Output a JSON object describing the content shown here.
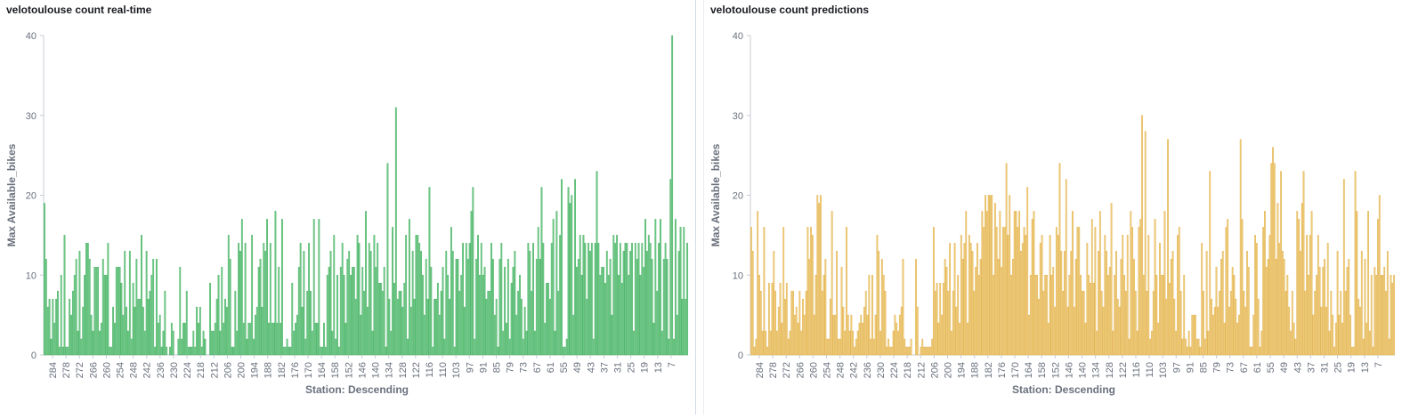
{
  "panels": [
    {
      "title": "velotoulouse count real-time",
      "bar_color": "#54b36e",
      "bar_fill": "#6dcc86",
      "chart_data": {
        "type": "bar",
        "title": "velotoulouse count real-time",
        "xlabel": "Station: Descending",
        "ylabel": "Max Available_bikes",
        "ylim": [
          0,
          40
        ],
        "yticks": [
          0,
          10,
          20,
          30,
          40
        ],
        "x_ticks": [
          "284",
          "278",
          "272",
          "266",
          "260",
          "254",
          "248",
          "242",
          "236",
          "230",
          "224",
          "218",
          "212",
          "206",
          "200",
          "194",
          "188",
          "182",
          "176",
          "170",
          "164",
          "158",
          "152",
          "146",
          "140",
          "134",
          "128",
          "122",
          "116",
          "110",
          "103",
          "97",
          "91",
          "85",
          "79",
          "73",
          "67",
          "61",
          "55",
          "49",
          "43",
          "37",
          "31",
          "25",
          "19",
          "13",
          "7"
        ],
        "values": [
          19,
          12,
          6,
          7,
          2,
          7,
          4,
          7,
          8,
          1,
          10,
          1,
          15,
          1,
          1,
          7,
          5,
          8,
          10,
          12,
          3,
          13,
          2,
          6,
          10,
          14,
          14,
          12,
          5,
          3,
          11,
          11,
          11,
          3,
          4,
          12,
          10,
          10,
          14,
          1,
          1,
          6,
          4,
          11,
          11,
          11,
          9,
          5,
          13,
          6,
          3,
          13,
          2,
          9,
          6,
          12,
          7,
          7,
          15,
          6,
          3,
          13,
          7,
          8,
          10,
          12,
          1,
          12,
          4,
          5,
          1,
          3,
          8,
          1,
          0,
          1,
          4,
          3,
          0,
          0,
          2,
          11,
          2,
          4,
          4,
          8,
          1,
          1,
          1,
          3,
          1,
          6,
          4,
          6,
          1,
          3,
          2,
          0,
          0,
          9,
          3,
          3,
          4,
          7,
          10,
          3,
          11,
          4,
          7,
          6,
          15,
          12,
          1,
          1,
          8,
          3,
          14,
          13,
          17,
          4,
          14,
          2,
          4,
          4,
          15,
          2,
          5,
          6,
          11,
          12,
          6,
          14,
          13,
          17,
          4,
          14,
          4,
          4,
          18,
          4,
          11,
          4,
          17,
          1,
          1,
          2,
          1,
          1,
          9,
          3,
          4,
          5,
          11,
          14,
          6,
          13,
          2,
          8,
          14,
          8,
          3,
          17,
          4,
          4,
          17,
          1,
          1,
          4,
          1,
          10,
          11,
          13,
          3,
          15,
          2,
          10,
          1,
          11,
          14,
          10,
          4,
          12,
          13,
          10,
          11,
          11,
          7,
          15,
          14,
          5,
          11,
          8,
          18,
          6,
          14,
          13,
          3,
          15,
          11,
          14,
          9,
          9,
          8,
          11,
          1,
          24,
          7,
          3,
          16,
          9,
          31,
          7,
          8,
          8,
          6,
          9,
          15,
          2,
          17,
          6,
          13,
          7,
          15,
          15,
          14,
          13,
          10,
          5,
          12,
          7,
          21,
          11,
          1,
          7,
          7,
          9,
          5,
          8,
          11,
          2,
          13,
          10,
          7,
          16,
          13,
          1,
          12,
          12,
          8,
          10,
          14,
          6,
          14,
          12,
          14,
          18,
          21,
          2,
          12,
          15,
          10,
          14,
          10,
          11,
          7,
          8,
          8,
          14,
          12,
          5,
          7,
          1,
          12,
          14,
          3,
          11,
          4,
          12,
          2,
          9,
          11,
          13,
          5,
          8,
          10,
          7,
          2,
          6,
          3,
          14,
          13,
          8,
          14,
          3,
          12,
          16,
          12,
          21,
          14,
          4,
          9,
          9,
          7,
          14,
          17,
          3,
          18,
          8,
          15,
          22,
          1,
          1,
          2,
          21,
          19,
          20,
          5,
          22,
          11,
          12,
          15,
          10,
          15,
          14,
          7,
          14,
          13,
          14,
          2,
          14,
          23,
          14,
          10,
          11,
          11,
          9,
          13,
          10,
          12,
          5,
          15,
          14,
          15,
          10,
          14,
          9,
          13,
          14,
          14,
          10,
          13,
          14,
          3,
          14,
          12,
          14,
          10,
          14,
          11,
          17,
          13,
          15,
          14,
          12,
          4,
          17,
          8,
          14,
          17,
          3,
          12,
          14,
          12,
          2,
          22,
          40,
          2,
          17,
          5,
          13,
          16,
          7,
          16,
          7,
          14
        ]
      }
    },
    {
      "title": "velotoulouse count predictions",
      "bar_color": "#e2b457",
      "bar_fill": "#f1cf7c",
      "chart_data": {
        "type": "bar",
        "title": "velotoulouse count predictions",
        "xlabel": "Station: Descending",
        "ylabel": "Max Available_bikes",
        "ylim": [
          0,
          40
        ],
        "yticks": [
          0,
          10,
          20,
          30,
          40
        ],
        "x_ticks": [
          "284",
          "278",
          "272",
          "266",
          "260",
          "254",
          "248",
          "242",
          "236",
          "230",
          "224",
          "218",
          "212",
          "206",
          "200",
          "194",
          "188",
          "182",
          "176",
          "170",
          "164",
          "158",
          "152",
          "146",
          "140",
          "134",
          "128",
          "122",
          "116",
          "110",
          "103",
          "97",
          "91",
          "85",
          "79",
          "73",
          "67",
          "61",
          "55",
          "49",
          "43",
          "37",
          "31",
          "25",
          "19",
          "13",
          "7"
        ],
        "values": [
          16,
          13,
          1,
          2,
          18,
          10,
          8,
          3,
          16,
          3,
          1,
          9,
          3,
          9,
          13,
          8,
          3,
          6,
          9,
          4,
          16,
          7,
          9,
          2,
          3,
          8,
          8,
          5,
          6,
          4,
          8,
          3,
          7,
          5,
          8,
          16,
          12,
          16,
          15,
          5,
          10,
          20,
          19,
          20,
          8,
          10,
          12,
          2,
          2,
          7,
          18,
          5,
          5,
          13,
          2,
          2,
          11,
          6,
          3,
          16,
          5,
          3,
          5,
          3,
          1,
          2,
          3,
          4,
          5,
          4,
          6,
          8,
          5,
          10,
          2,
          10,
          2,
          5,
          15,
          13,
          3,
          12,
          10,
          8,
          1,
          2,
          1,
          1,
          3,
          5,
          4,
          3,
          5,
          6,
          12,
          2,
          1,
          1,
          1,
          2,
          0,
          0,
          12,
          6,
          0,
          1,
          2,
          1,
          1,
          1,
          1,
          1,
          2,
          16,
          8,
          9,
          4,
          9,
          5,
          9,
          12,
          11,
          8,
          14,
          3,
          8,
          14,
          6,
          10,
          4,
          15,
          12,
          14,
          18,
          4,
          15,
          14,
          13,
          8,
          11,
          14,
          10,
          12,
          18,
          16,
          20,
          18,
          20,
          20,
          20,
          10,
          19,
          16,
          12,
          18,
          11,
          16,
          16,
          24,
          15,
          20,
          10,
          12,
          18,
          18,
          16,
          18,
          13,
          14,
          16,
          15,
          21,
          5,
          10,
          17,
          18,
          10,
          10,
          7,
          14,
          15,
          8,
          10,
          10,
          4,
          15,
          10,
          11,
          6,
          16,
          15,
          24,
          13,
          8,
          13,
          22,
          6,
          10,
          13,
          18,
          6,
          12,
          16,
          16,
          10,
          8,
          8,
          4,
          14,
          10,
          9,
          17,
          9,
          16,
          3,
          13,
          18,
          8,
          6,
          15,
          13,
          10,
          11,
          19,
          3,
          10,
          13,
          7,
          6,
          12,
          15,
          10,
          8,
          15,
          2,
          18,
          16,
          12,
          8,
          3,
          16,
          17,
          30,
          10,
          28,
          8,
          15,
          2,
          3,
          8,
          17,
          10,
          4,
          14,
          10,
          10,
          18,
          7,
          27,
          9,
          12,
          13,
          7,
          3,
          15,
          16,
          8,
          2,
          10,
          2,
          1,
          3,
          1,
          5,
          5,
          5,
          2,
          2,
          1,
          14,
          8,
          2,
          13,
          3,
          23,
          7,
          5,
          6,
          11,
          6,
          8,
          12,
          13,
          4,
          16,
          17,
          6,
          8,
          11,
          10,
          7,
          4,
          5,
          27,
          17,
          8,
          6,
          13,
          11,
          1,
          1,
          5,
          15,
          14,
          7,
          1,
          3,
          16,
          18,
          11,
          12,
          15,
          24,
          26,
          24,
          12,
          19,
          14,
          23,
          13,
          12,
          8,
          10,
          6,
          3,
          8,
          4,
          2,
          18,
          17,
          13,
          19,
          23,
          8,
          15,
          10,
          15,
          18,
          5,
          8,
          10,
          15,
          11,
          6,
          11,
          12,
          6,
          14,
          3,
          8,
          5,
          1,
          4,
          13,
          5,
          8,
          4,
          22,
          8,
          11,
          12,
          5,
          1,
          1,
          23,
          18,
          7,
          6,
          13,
          2,
          12,
          4,
          18,
          3,
          10,
          1,
          11,
          10,
          17,
          20,
          10,
          10,
          11,
          8,
          13,
          2,
          10,
          9,
          10
        ]
      }
    }
  ]
}
